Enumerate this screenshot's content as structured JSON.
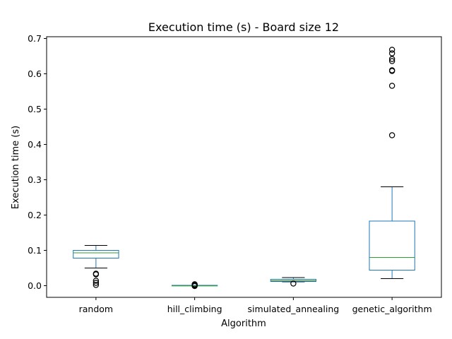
{
  "chart_data": {
    "type": "box",
    "title": "Execution time (s) - Board size 12",
    "xlabel": "Algorithm",
    "ylabel": "Execution time (s)",
    "ylim": [
      -0.033,
      0.705
    ],
    "yticks": [
      "0.0",
      "0.1",
      "0.2",
      "0.3",
      "0.4",
      "0.5",
      "0.6",
      "0.7"
    ],
    "grid": false,
    "colors": {
      "box": "#1f77b4",
      "median": "#2ca02c",
      "whisker": "#000000",
      "flier": "#000000"
    },
    "categories": [
      "random",
      "hill_climbing",
      "simulated_annealing",
      "genetic_algorithm"
    ],
    "series": [
      {
        "category": "random",
        "whisker_low": 0.05,
        "q1": 0.078,
        "median": 0.093,
        "q3": 0.1,
        "whisker_high": 0.114,
        "fliers": [
          0.032,
          0.034,
          0.014,
          0.008,
          0.002
        ]
      },
      {
        "category": "hill_climbing",
        "whisker_low": 0.0,
        "q1": 0.0,
        "median": 0.0,
        "q3": 0.001,
        "whisker_high": 0.001,
        "fliers": [
          0.004,
          0.003,
          0.001,
          0.0,
          -0.001
        ]
      },
      {
        "category": "simulated_annealing",
        "whisker_low": 0.011,
        "q1": 0.012,
        "median": 0.014,
        "q3": 0.018,
        "whisker_high": 0.023,
        "fliers": [
          0.006
        ]
      },
      {
        "category": "genetic_algorithm",
        "whisker_low": 0.02,
        "q1": 0.044,
        "median": 0.08,
        "q3": 0.183,
        "whisker_high": 0.28,
        "fliers": [
          0.668,
          0.658,
          0.642,
          0.636,
          0.61,
          0.608,
          0.566,
          0.426
        ]
      }
    ]
  }
}
